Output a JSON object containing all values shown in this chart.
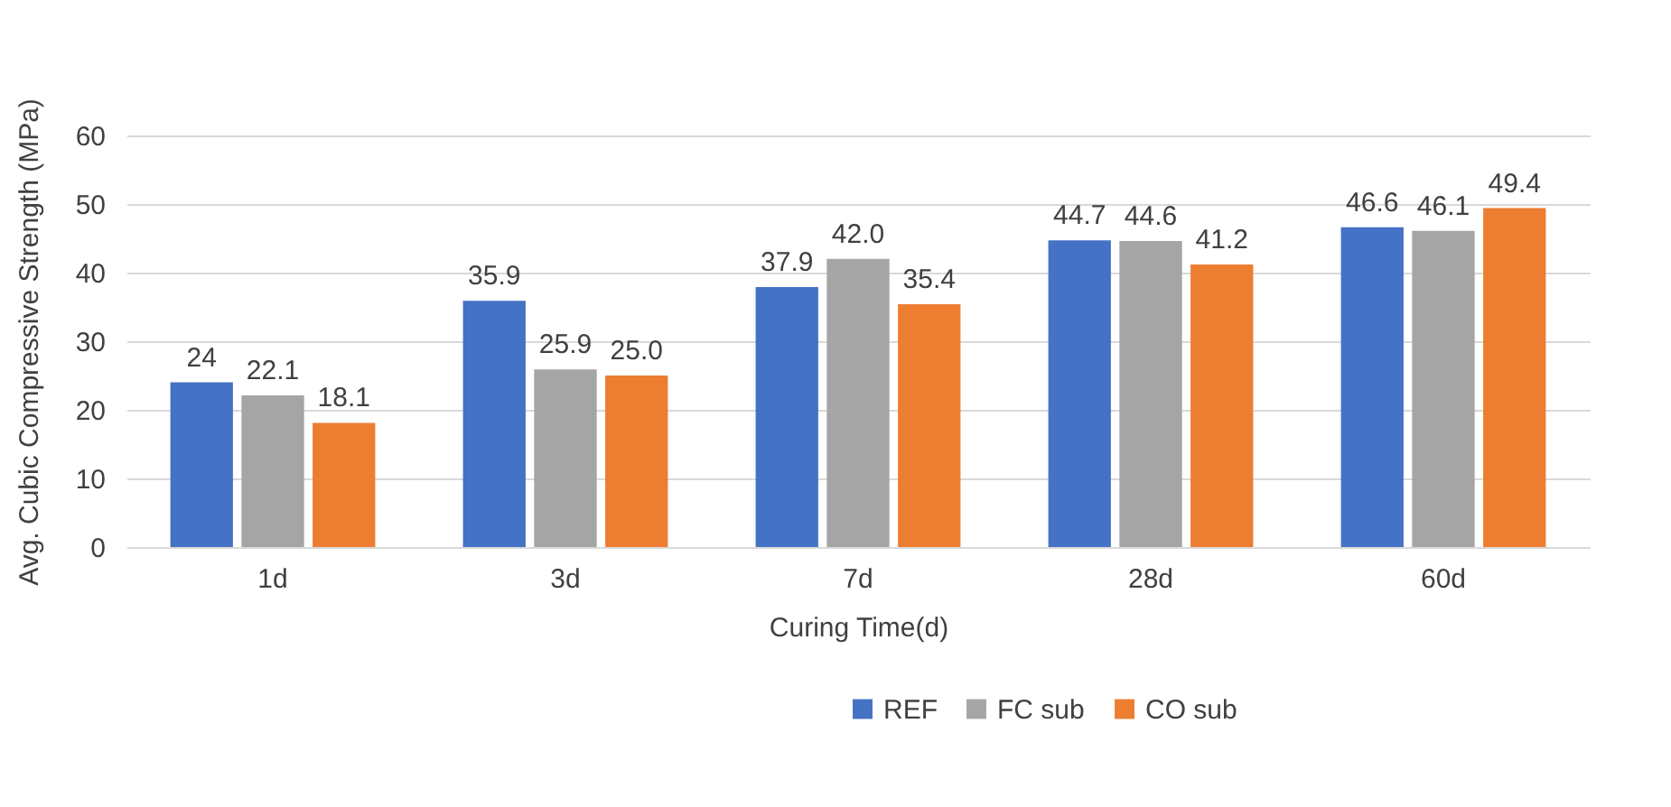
{
  "chart_data": {
    "type": "bar",
    "xlabel": "Curing Time(d)",
    "ylabel": "Avg. Cubic Compressive Strength (MPa)",
    "categories": [
      "1d",
      "3d",
      "7d",
      "28d",
      "60d"
    ],
    "series": [
      {
        "name": "REF",
        "color": "#4472c4",
        "values": [
          24,
          35.9,
          37.9,
          44.7,
          46.6
        ],
        "value_labels": [
          "24",
          "35.9",
          "37.9",
          "44.7",
          "46.6"
        ]
      },
      {
        "name": "FC sub",
        "color": "#a5a5a5",
        "values": [
          22.1,
          25.9,
          42.0,
          44.6,
          46.1
        ],
        "value_labels": [
          "22.1",
          "25.9",
          "42.0",
          "44.6",
          "46.1"
        ]
      },
      {
        "name": "CO sub",
        "color": "#ed7d31",
        "values": [
          18.1,
          25.0,
          35.4,
          41.2,
          49.4
        ],
        "value_labels": [
          "18.1",
          "25.0",
          "35.4",
          "41.2",
          "49.4"
        ]
      }
    ],
    "ylim": [
      0,
      60
    ],
    "yticks": [
      0,
      10,
      20,
      30,
      40,
      50,
      60
    ],
    "grid": "y",
    "legend": "bottom"
  }
}
